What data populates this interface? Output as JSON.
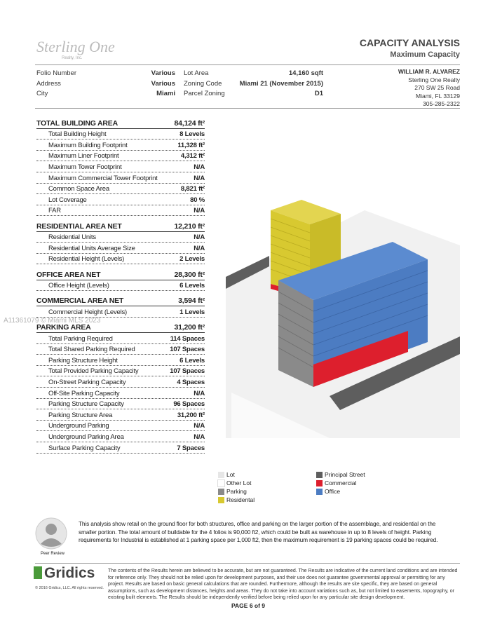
{
  "header": {
    "logo": "Sterling One",
    "logo_sub": "Realty, Inc.",
    "title": "CAPACITY ANALYSIS",
    "subtitle": "Maximum Capacity"
  },
  "info": [
    [
      "Folio Number",
      "Various",
      "Lot Area",
      "14,160 sqft"
    ],
    [
      "Address",
      "Various",
      "Zoning Code",
      "Miami 21 (November 2015)"
    ],
    [
      "City",
      "Miami",
      "Parcel Zoning",
      "D1"
    ]
  ],
  "contact": [
    "WILLIAM R. ALVAREZ",
    "Sterling One Realty",
    "270 SW 25 Road",
    "Miami, FL 33129",
    "305-285-2322"
  ],
  "sections": [
    {
      "title": "TOTAL BUILDING AREA",
      "value": "84,124 ft²",
      "rows": [
        [
          "Total Building Height",
          "8 Levels"
        ],
        [
          "Maximum Building Footprint",
          "11,328 ft²"
        ],
        [
          "Maximum Liner Footprint",
          "4,312 ft²"
        ],
        [
          "Maximum Tower Footprint",
          "N/A"
        ],
        [
          "Maximum Commercial Tower Footprint",
          "N/A"
        ],
        [
          "Common Space Area",
          "8,821 ft²"
        ],
        [
          "Lot Coverage",
          "80 %"
        ],
        [
          "FAR",
          "N/A"
        ]
      ]
    },
    {
      "title": "RESIDENTIAL AREA NET",
      "value": "12,210 ft²",
      "rows": [
        [
          "Residential Units",
          "N/A"
        ],
        [
          "Residential Units Average Size",
          "N/A"
        ],
        [
          "Residential Height (Levels)",
          "2 Levels"
        ]
      ]
    },
    {
      "title": "OFFICE AREA NET",
      "value": "28,300 ft²",
      "rows": [
        [
          "Office Height (Levels)",
          "6 Levels"
        ]
      ]
    },
    {
      "title": "COMMERCIAL AREA NET",
      "value": "3,594 ft²",
      "rows": [
        [
          "Commercial Height (Levels)",
          "1 Levels"
        ]
      ]
    },
    {
      "title": "PARKING AREA",
      "value": "31,200 ft²",
      "rows": [
        [
          "Total Parking Required",
          "114 Spaces"
        ],
        [
          "Total Shared Parking Required",
          "107 Spaces"
        ],
        [
          "Parking Structure Height",
          "6 Levels"
        ],
        [
          "Total Provided Parking Capacity",
          "107 Spaces"
        ],
        [
          "On-Street Parking Capacity",
          "4 Spaces"
        ],
        [
          "Off-Site Parking Capacity",
          "N/A"
        ],
        [
          "Parking Structure Capacity",
          "96 Spaces"
        ],
        [
          "Parking Structure Area",
          "31,200 ft²"
        ],
        [
          "Underground Parking",
          "N/A"
        ],
        [
          "Underground Parking Area",
          "N/A"
        ],
        [
          "Surface Parking Capacity",
          "7 Spaces"
        ]
      ]
    }
  ],
  "legend": [
    {
      "label": "Lot",
      "color": "#e6e6e6"
    },
    {
      "label": "Other Lot",
      "color": "#ffffff"
    },
    {
      "label": "Parking",
      "color": "#8a8a8a"
    },
    {
      "label": "Residental",
      "color": "#d8c930"
    },
    {
      "label": "Principal Street",
      "color": "#5e5e5e"
    },
    {
      "label": "Commercial",
      "color": "#dd1f2d"
    },
    {
      "label": "Office",
      "color": "#4c7cc2"
    }
  ],
  "watermark": "A11361079 © Miami MLS 2023",
  "peer_review": "Peer Review",
  "description": "This analysis show retail on the ground floor for both structures, office and parking on the larger portion of the assemblage, and residential on the smaller portion. The total amount of buildable for the 4 folios is 90,000 ft2, which could be built as warehouse in up to 8 levels of height. Parking requirements for Industrial is established at 1 parking space per 1,000 ft2, then the maximum requirement is 19 parking spaces could be required.",
  "brand": "Gridics",
  "copyright": "© 2016 Gridics, LLC. All rights reserved.",
  "disclaimer": "The contents of the Results herein are believed to be accurate, but are not guaranteed. The Results are indicative of the current land conditions and are intended for reference only. They should not be relied upon for development purposes, and their use does not guarantee governmental approval or permitting for any project. Results are based on basic general calculations that are rounded. Furthermore, although the results are site specific, they are based on general assumptions, such as development distances, heights and areas. They do not take into account variations such as, but not limited to easements, topography, or existing built elements. The Results should be independently verified before being relied upon for any particular site design development.",
  "page": "PAGE 6 of 9"
}
